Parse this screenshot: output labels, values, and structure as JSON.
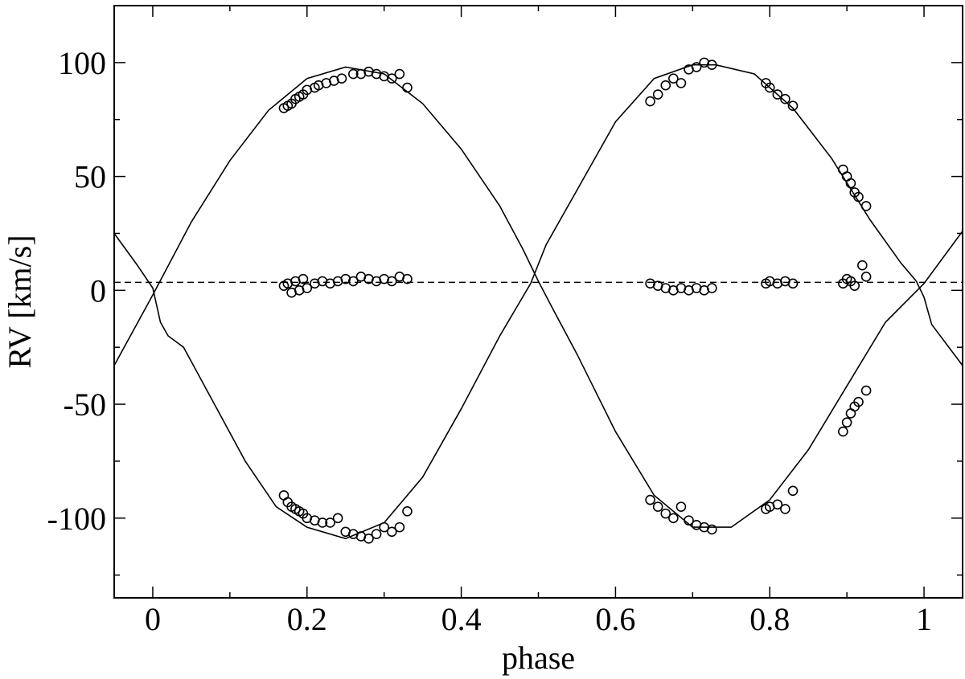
{
  "chart_data": {
    "type": "scatter",
    "title": "",
    "xlabel": "phase",
    "ylabel": "RV [km/s]",
    "xlim": [
      -0.05,
      1.05
    ],
    "ylim": [
      -135,
      125
    ],
    "xticks": [
      {
        "value": 0,
        "label": "0"
      },
      {
        "value": 0.2,
        "label": "0.2"
      },
      {
        "value": 0.4,
        "label": "0.4"
      },
      {
        "value": 0.6,
        "label": "0.6"
      },
      {
        "value": 0.8,
        "label": "0.8"
      },
      {
        "value": 1,
        "label": "1"
      }
    ],
    "xminor": [
      0.1,
      0.3,
      0.5,
      0.7,
      0.9
    ],
    "yticks": [
      {
        "value": 100,
        "label": "100"
      },
      {
        "value": 50,
        "label": "50"
      },
      {
        "value": 0,
        "label": "0"
      },
      {
        "value": -50,
        "label": "-50"
      },
      {
        "value": -100,
        "label": "-100"
      }
    ],
    "yminor": [
      125,
      75,
      25,
      -25,
      -75,
      -125
    ],
    "grid": false,
    "reference_line": {
      "y": 3.5,
      "style": "dashed"
    },
    "models": [
      {
        "x": [
          -0.05,
          0.0,
          0.05,
          0.1,
          0.15,
          0.2,
          0.25,
          0.3,
          0.35,
          0.4,
          0.45,
          0.48,
          0.5,
          0.52,
          0.55,
          0.6,
          0.65,
          0.7,
          0.75,
          0.8,
          0.85,
          0.9,
          0.95,
          1.0,
          1.05
        ],
        "y": [
          -33,
          -2,
          30,
          57,
          79,
          93,
          98,
          95,
          82,
          62,
          37,
          18,
          4,
          -9,
          -28,
          -62,
          -90,
          -104,
          -104,
          -92,
          -70,
          -42,
          -14,
          3,
          26
        ]
      },
      {
        "x": [
          -0.05,
          -0.02,
          0.0,
          0.01,
          0.02,
          0.04,
          0.08,
          0.12,
          0.16,
          0.2,
          0.25,
          0.3,
          0.35,
          0.4,
          0.45,
          0.49,
          0.51,
          0.55,
          0.6,
          0.65,
          0.7,
          0.73,
          0.78,
          0.83,
          0.88,
          0.93,
          0.97,
          0.99,
          1.0,
          1.01,
          1.05
        ],
        "y": [
          25,
          11,
          1,
          -14,
          -20,
          -25,
          -50,
          -75,
          -95,
          -104,
          -109,
          -102,
          -82,
          -52,
          -20,
          3,
          20,
          44,
          74,
          93,
          99,
          99,
          95,
          80,
          58,
          31,
          12,
          4,
          -3,
          -15,
          -33
        ]
      }
    ],
    "points": {
      "x": [
        0.17,
        0.175,
        0.18,
        0.185,
        0.19,
        0.195,
        0.2,
        0.21,
        0.215,
        0.225,
        0.235,
        0.245,
        0.26,
        0.27,
        0.28,
        0.29,
        0.3,
        0.31,
        0.32,
        0.33,
        0.645,
        0.655,
        0.665,
        0.675,
        0.685,
        0.695,
        0.705,
        0.715,
        0.725,
        0.795,
        0.8,
        0.81,
        0.82,
        0.83,
        0.895,
        0.9,
        0.905,
        0.91,
        0.915,
        0.925,
        0.17,
        0.175,
        0.18,
        0.185,
        0.19,
        0.195,
        0.2,
        0.21,
        0.22,
        0.23,
        0.24,
        0.25,
        0.26,
        0.27,
        0.28,
        0.29,
        0.3,
        0.31,
        0.32,
        0.33,
        0.645,
        0.655,
        0.665,
        0.675,
        0.685,
        0.695,
        0.705,
        0.715,
        0.725,
        0.795,
        0.8,
        0.81,
        0.82,
        0.83,
        0.895,
        0.9,
        0.905,
        0.91,
        0.92,
        0.925,
        0.17,
        0.175,
        0.18,
        0.185,
        0.19,
        0.195,
        0.2,
        0.21,
        0.22,
        0.23,
        0.24,
        0.25,
        0.26,
        0.27,
        0.28,
        0.29,
        0.3,
        0.31,
        0.32,
        0.33,
        0.645,
        0.655,
        0.665,
        0.675,
        0.685,
        0.695,
        0.705,
        0.715,
        0.725,
        0.795,
        0.8,
        0.81,
        0.82,
        0.83,
        0.895,
        0.9,
        0.905,
        0.91,
        0.915,
        0.925
      ],
      "y": [
        80,
        81,
        82,
        84,
        85,
        86,
        88,
        89,
        90,
        91,
        92,
        93,
        95,
        95,
        96,
        95,
        94,
        93,
        95,
        89,
        83,
        86,
        90,
        93,
        91,
        97,
        98,
        100,
        99,
        91,
        89,
        86,
        84,
        81,
        53,
        50,
        47,
        43,
        41,
        37,
        2,
        3,
        -1,
        4,
        0,
        5,
        1,
        3,
        4,
        3,
        4,
        5,
        4,
        6,
        5,
        4,
        5,
        4,
        6,
        5,
        3,
        2,
        1,
        0,
        1,
        0,
        1,
        0,
        1,
        3,
        4,
        3,
        4,
        3,
        3,
        5,
        4,
        2,
        11,
        6,
        -90,
        -93,
        -95,
        -96,
        -97,
        -98,
        -100,
        -101,
        -102,
        -102,
        -100,
        -106,
        -107,
        -108,
        -109,
        -107,
        -104,
        -106,
        -104,
        -97,
        -92,
        -95,
        -98,
        -100,
        -95,
        -101,
        -103,
        -104,
        -105,
        -96,
        -95,
        -94,
        -96,
        -88,
        -62,
        -58,
        -54,
        -51,
        -49,
        -44
      ]
    }
  }
}
